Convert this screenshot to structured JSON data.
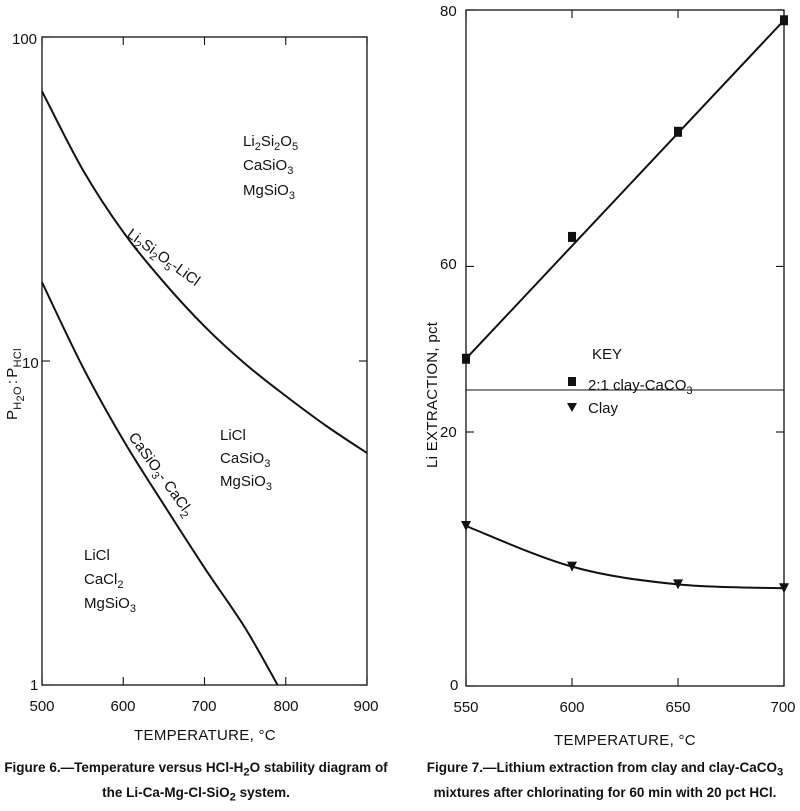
{
  "chart_data": [
    {
      "type": "line",
      "title": "",
      "xlabel": "TEMPERATURE, °C",
      "ylabel": "P_H2O : P_HCl",
      "ylabel_parts": {
        "p1": "P",
        "s1": "H",
        "s2": "2",
        "s3": "O",
        "colon": ":",
        "p2": "P",
        "s4": "HCl"
      },
      "xlim": [
        500,
        900
      ],
      "ylim": [
        1,
        100
      ],
      "yscale": "log",
      "xticks": [
        "500",
        "600",
        "700",
        "800",
        "900"
      ],
      "yticks": [
        "1",
        "10",
        "100"
      ],
      "grid": false,
      "series": [
        {
          "name": "Li2Si2O5-LiCl",
          "x": [
            500,
            550,
            600,
            650,
            700,
            750,
            800,
            850,
            900
          ],
          "y": [
            68,
            39,
            25,
            17.5,
            12.8,
            9.8,
            7.8,
            6.3,
            5.2
          ]
        },
        {
          "name": "CaSiO3-CaCl2",
          "x": [
            500,
            550,
            600,
            650,
            700,
            750,
            790
          ],
          "y": [
            17.5,
            9.6,
            5.7,
            3.6,
            2.3,
            1.5,
            1.0
          ]
        }
      ],
      "curve_labels": [
        {
          "base": "Li",
          "s1": "2",
          "m1": "Si",
          "s2": "2",
          "m2": "O",
          "s3": "5",
          "tail": "-LiCl"
        },
        {
          "base": "CaSiO",
          "s1": "3",
          "tail": "- CaCl",
          "s2": "2"
        }
      ],
      "regions": [
        {
          "lines": [
            "Li2Si2O5",
            "CaSiO3",
            "MgSiO3"
          ]
        },
        {
          "lines": [
            "LiCl",
            "CaSiO3",
            "MgSiO3"
          ]
        },
        {
          "lines": [
            "LiCl",
            "CaCl2",
            "MgSiO3"
          ]
        }
      ],
      "region_parts": {
        "li2si2o5": {
          "a": "Li",
          "b": "2",
          "c": "Si",
          "d": "2",
          "e": "O",
          "f": "5"
        },
        "casio3": {
          "a": "CaSiO",
          "b": "3"
        },
        "mgsio3": {
          "a": "MgSiO",
          "b": "3"
        },
        "licl": "LiCl",
        "cacl2": {
          "a": "CaCl",
          "b": "2"
        }
      }
    },
    {
      "type": "line",
      "title": "",
      "xlabel": "TEMPERATURE, °C",
      "ylabel": "Li EXTRACTION, pct",
      "xlim": [
        550,
        700
      ],
      "ylim": [
        0,
        80
      ],
      "ylim_broken": {
        "lower": [
          0,
          20
        ],
        "upper": [
          52,
          80
        ]
      },
      "xticks": [
        "550",
        "600",
        "650",
        "700"
      ],
      "yticks": [
        "0",
        "20",
        "60",
        "80"
      ],
      "grid": false,
      "legend_title": "KEY",
      "legend_position": "center-right",
      "series": [
        {
          "name": "2:1 clay-CaCO3",
          "marker": "square",
          "x": [
            550,
            600,
            650,
            700
          ],
          "y": [
            52.8,
            62.3,
            70.5,
            79.2
          ]
        },
        {
          "name": "Clay",
          "marker": "triangle-down",
          "x": [
            550,
            600,
            650,
            700
          ],
          "y": [
            12.6,
            9.4,
            8.0,
            7.7
          ]
        }
      ],
      "legend_parts": {
        "square_a": "2:1 clay-CaCO",
        "square_b": "3",
        "clay": "Clay"
      }
    }
  ],
  "captions": {
    "fig6": {
      "line1": "Figure 6.—Temperature versus HCl-H",
      "line1_sub": "2",
      "line1_tail": "O stability diagram of",
      "line2": "the Li-Ca-Mg-Cl-SiO",
      "line2_sub": "2",
      "line2_tail": " system."
    },
    "fig7": {
      "line1": "Figure 7.—Lithium extraction from clay and clay-CaCO",
      "line1_sub": "3",
      "line2": "mixtures after chlorinating for 60 min with 20 pct HCl."
    }
  }
}
